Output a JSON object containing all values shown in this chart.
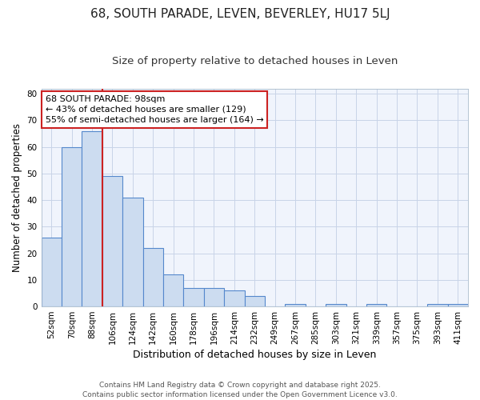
{
  "title1": "68, SOUTH PARADE, LEVEN, BEVERLEY, HU17 5LJ",
  "title2": "Size of property relative to detached houses in Leven",
  "xlabel": "Distribution of detached houses by size in Leven",
  "ylabel": "Number of detached properties",
  "bin_labels": [
    "52sqm",
    "70sqm",
    "88sqm",
    "106sqm",
    "124sqm",
    "142sqm",
    "160sqm",
    "178sqm",
    "196sqm",
    "214sqm",
    "232sqm",
    "249sqm",
    "267sqm",
    "285sqm",
    "303sqm",
    "321sqm",
    "339sqm",
    "357sqm",
    "375sqm",
    "393sqm",
    "411sqm"
  ],
  "bar_values": [
    26,
    60,
    66,
    49,
    41,
    22,
    12,
    7,
    7,
    6,
    4,
    0,
    1,
    0,
    1,
    0,
    1,
    0,
    0,
    1,
    1
  ],
  "bar_color": "#ccdcf0",
  "bar_edge_color": "#5588cc",
  "grid_color": "#c8d4e8",
  "bg_color": "#ffffff",
  "plot_bg_color": "#f0f4fc",
  "vline_x": 3,
  "vline_color": "#cc2222",
  "annotation_text": "68 SOUTH PARADE: 98sqm\n← 43% of detached houses are smaller (129)\n55% of semi-detached houses are larger (164) →",
  "annotation_box_color": "#ffffff",
  "annotation_box_edge": "#cc2222",
  "ylim": [
    0,
    82
  ],
  "yticks": [
    0,
    10,
    20,
    30,
    40,
    50,
    60,
    70,
    80
  ],
  "footer": "Contains HM Land Registry data © Crown copyright and database right 2025.\nContains public sector information licensed under the Open Government Licence v3.0.",
  "title1_fontsize": 11,
  "title2_fontsize": 9.5,
  "xlabel_fontsize": 9,
  "ylabel_fontsize": 8.5,
  "tick_fontsize": 7.5,
  "annotation_fontsize": 8,
  "footer_fontsize": 6.5
}
